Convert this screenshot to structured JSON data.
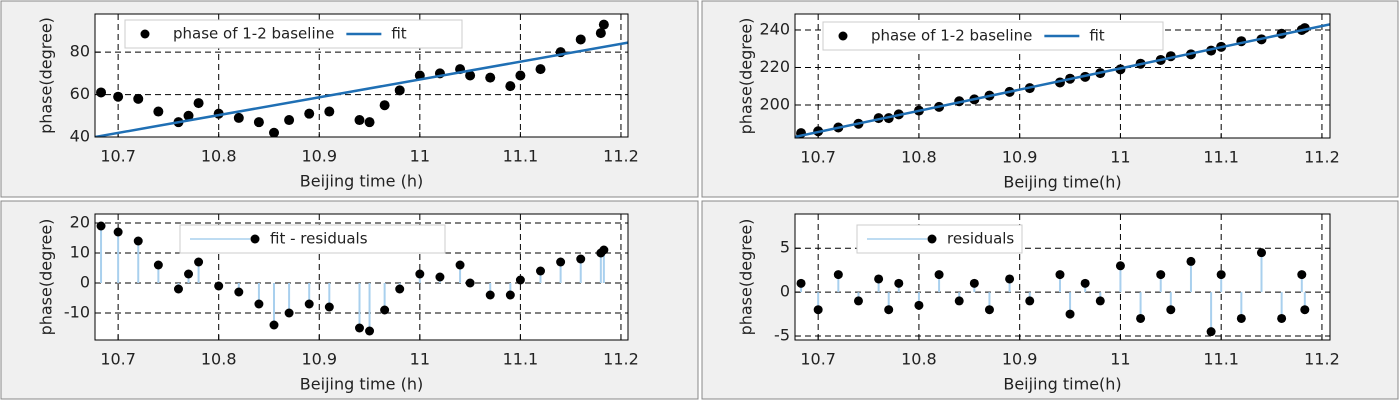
{
  "chart_data": [
    {
      "type": "scatter",
      "xlabel": "Beijing time (h)",
      "ylabel": "phase(degree)",
      "x": [
        10.683,
        10.7,
        10.72,
        10.74,
        10.76,
        10.77,
        10.78,
        10.8,
        10.82,
        10.84,
        10.855,
        10.87,
        10.89,
        10.91,
        10.94,
        10.95,
        10.965,
        10.98,
        11.0,
        11.02,
        11.04,
        11.05,
        11.07,
        11.09,
        11.1,
        11.12,
        11.14,
        11.16,
        11.18,
        11.183
      ],
      "series": [
        {
          "name": "phase of 1-2 baseline",
          "color": "#000000",
          "style": "markers",
          "values": [
            61,
            59,
            58,
            52,
            47,
            50,
            56,
            51,
            49,
            47,
            42,
            48,
            51,
            52,
            48,
            47,
            55,
            62,
            69,
            70,
            72,
            69,
            68,
            64,
            69,
            72,
            80,
            86,
            89,
            93
          ]
        },
        {
          "name": "fit",
          "color": "#1f6fb4",
          "style": "line",
          "x": [
            10.677,
            11.207
          ],
          "values": [
            40,
            84.5
          ]
        }
      ],
      "xlim": [
        10.677,
        11.207
      ],
      "ylim": [
        40,
        98
      ],
      "xticks": [
        10.7,
        10.8,
        10.9,
        11,
        11.1,
        11.2
      ],
      "yticks": [
        40,
        60,
        80
      ],
      "grid": true
    },
    {
      "type": "scatter",
      "xlabel": "Beijing time(h)",
      "ylabel": "phase(degree)",
      "x": [
        10.683,
        10.7,
        10.72,
        10.74,
        10.76,
        10.77,
        10.78,
        10.8,
        10.82,
        10.84,
        10.855,
        10.87,
        10.89,
        10.91,
        10.94,
        10.95,
        10.965,
        10.98,
        11.0,
        11.02,
        11.04,
        11.05,
        11.07,
        11.09,
        11.1,
        11.12,
        11.14,
        11.16,
        11.18,
        11.183
      ],
      "series": [
        {
          "name": "phase of 1-2 baseline",
          "color": "#000000",
          "style": "markers",
          "values": [
            185,
            186,
            188,
            190,
            193,
            193,
            195,
            197,
            199,
            202,
            203,
            205,
            207,
            209,
            212,
            214,
            215,
            217,
            219,
            222,
            224,
            226,
            227,
            229,
            231,
            234,
            235,
            238,
            240,
            241
          ]
        },
        {
          "name": "fit",
          "color": "#1f6fb4",
          "style": "line",
          "x": [
            10.677,
            11.208
          ],
          "values": [
            183,
            243
          ]
        }
      ],
      "xlim": [
        10.677,
        11.208
      ],
      "ylim": [
        182.4,
        248.5
      ],
      "xticks": [
        10.7,
        10.8,
        10.9,
        11,
        11.1,
        11.2
      ],
      "yticks": [
        200,
        220,
        240
      ],
      "grid": true
    },
    {
      "type": "stem",
      "xlabel": "Beijing time (h)",
      "ylabel": "phase(degree)",
      "x": [
        10.683,
        10.7,
        10.72,
        10.74,
        10.76,
        10.77,
        10.78,
        10.8,
        10.82,
        10.84,
        10.855,
        10.87,
        10.89,
        10.91,
        10.94,
        10.95,
        10.965,
        10.98,
        11.0,
        11.02,
        11.04,
        11.05,
        11.07,
        11.09,
        11.1,
        11.12,
        11.14,
        11.16,
        11.18,
        11.183
      ],
      "series": [
        {
          "name": "fit - residuals",
          "color": "#000000",
          "stem_color": "#a9d0ee",
          "values": [
            19,
            17,
            14,
            6,
            -2,
            3,
            7,
            -1,
            -3,
            -7,
            -14,
            -10,
            -7,
            -8,
            -15,
            -16,
            -9,
            -2,
            3,
            2,
            6,
            0,
            -4,
            -4,
            1,
            4,
            7,
            8,
            10,
            11
          ]
        }
      ],
      "xlim": [
        10.677,
        11.207
      ],
      "ylim": [
        -19,
        23
      ],
      "xticks": [
        10.7,
        10.8,
        10.9,
        11,
        11.1,
        11.2
      ],
      "yticks": [
        -10,
        0,
        10,
        20
      ],
      "grid": true
    },
    {
      "type": "stem",
      "xlabel": "Beijing time(h)",
      "ylabel": "phase(degree)",
      "x": [
        10.683,
        10.7,
        10.72,
        10.74,
        10.76,
        10.77,
        10.78,
        10.8,
        10.82,
        10.84,
        10.855,
        10.87,
        10.89,
        10.91,
        10.94,
        10.95,
        10.965,
        10.98,
        11.0,
        11.02,
        11.04,
        11.05,
        11.07,
        11.09,
        11.1,
        11.12,
        11.14,
        11.16,
        11.18,
        11.183
      ],
      "series": [
        {
          "name": "residuals",
          "color": "#000000",
          "stem_color": "#a9d0ee",
          "values": [
            1,
            -2,
            2,
            -1,
            1.5,
            -2,
            1,
            -1.5,
            2,
            -1,
            1,
            -2,
            1.5,
            -1,
            2,
            -2.5,
            1,
            -1,
            3,
            -3,
            2,
            -2,
            3.5,
            -4.5,
            2,
            -3,
            4.5,
            -3,
            2,
            -2
          ]
        }
      ],
      "xlim": [
        10.677,
        11.208
      ],
      "ylim": [
        -5.45,
        8.9
      ],
      "xticks": [
        10.7,
        10.8,
        10.9,
        11,
        11.1,
        11.2
      ],
      "yticks": [
        -5,
        0,
        5
      ],
      "grid": true
    }
  ]
}
